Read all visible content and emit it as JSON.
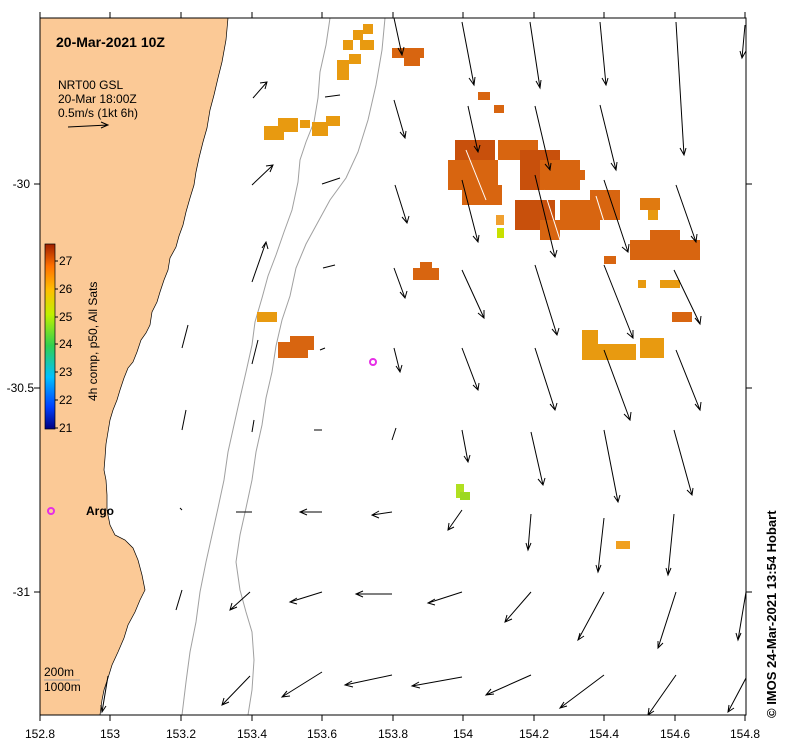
{
  "map": {
    "title": "20-Mar-2021 10Z",
    "product_line": "NRT00 GSL",
    "time_line": "20-Mar 18:00Z",
    "scale_label": "0.5m/s (1kt 6h)",
    "colorbar_label": "4h comp, p50, All Sats",
    "colorbar_ticks": [
      "27",
      "26",
      "25",
      "24",
      "23",
      "22",
      "21"
    ],
    "colorbar_range": [
      21,
      27.5
    ],
    "float_label": "Argo",
    "isobath_labels": [
      "200m",
      "1000m"
    ],
    "credit": "© IMOS 24-Mar-2021 13:54 Hobart",
    "x_ticks": [
      "152.8",
      "153",
      "153.2",
      "153.4",
      "153.6",
      "153.8",
      "154",
      "154.2",
      "154.4",
      "154.6",
      "154.8"
    ],
    "y_ticks": [
      "-30",
      "-30.5",
      "-31"
    ],
    "lon_range": [
      152.8,
      154.8
    ],
    "lat_range": [
      -29.6,
      -31.3
    ],
    "colors": {
      "land": "#fbc996",
      "floats": "#e62ee6",
      "isobath": "#a0a0a0"
    }
  }
}
